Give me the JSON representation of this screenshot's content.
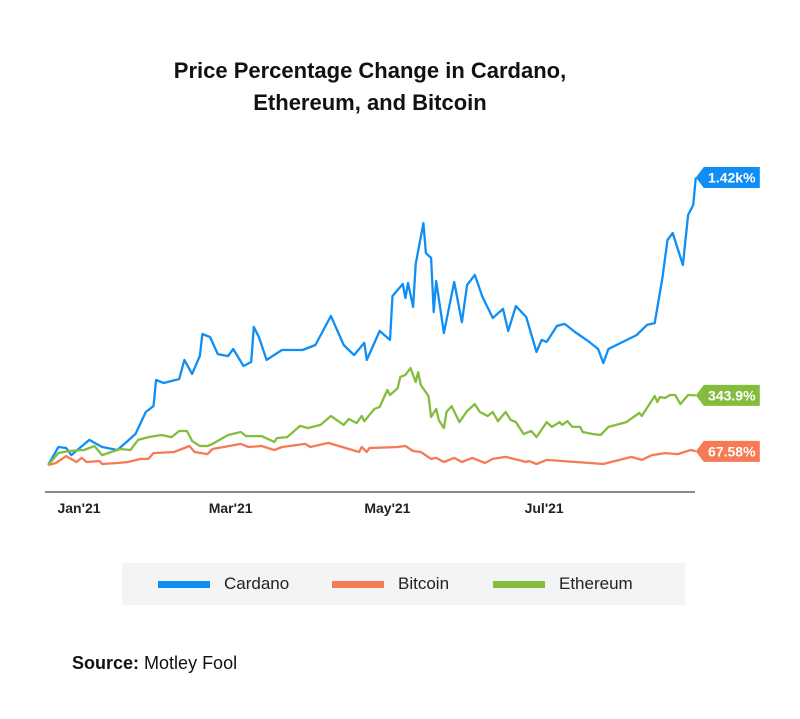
{
  "chart_data": {
    "type": "line",
    "title": "Price Percentage Change in Cardano, Ethereum, and Bitcoin",
    "title_lines": [
      "Price Percentage Change in Cardano,",
      "Ethereum, and Bitcoin"
    ],
    "xlabel": "",
    "ylabel": "",
    "x_ticks": [
      {
        "date": "2021-01-01",
        "label": "Jan'21"
      },
      {
        "date": "2021-03-01",
        "label": "Mar'21"
      },
      {
        "date": "2021-05-01",
        "label": "May'21"
      },
      {
        "date": "2021-07-01",
        "label": "Jul'21"
      }
    ],
    "y_unit": "%",
    "y_axis_shown": false,
    "grid": false,
    "legend_position": "bottom",
    "series": [
      {
        "name": "Cardano",
        "color": "#0f8ff5",
        "end_label": "1.42k%",
        "points": [
          [
            "2020-12-20",
            0
          ],
          [
            "2020-12-24",
            89
          ],
          [
            "2020-12-27",
            84
          ],
          [
            "2020-12-29",
            49
          ],
          [
            "2021-01-05",
            124
          ],
          [
            "2021-01-10",
            89
          ],
          [
            "2021-01-16",
            74
          ],
          [
            "2021-01-23",
            153
          ],
          [
            "2021-01-27",
            262
          ],
          [
            "2021-01-30",
            291
          ],
          [
            "2021-01-31",
            420
          ],
          [
            "2021-02-03",
            405
          ],
          [
            "2021-02-09",
            425
          ],
          [
            "2021-02-11",
            519
          ],
          [
            "2021-02-14",
            450
          ],
          [
            "2021-02-17",
            538
          ],
          [
            "2021-02-18",
            647
          ],
          [
            "2021-02-21",
            632
          ],
          [
            "2021-02-24",
            548
          ],
          [
            "2021-02-28",
            538
          ],
          [
            "2021-03-02",
            573
          ],
          [
            "2021-03-06",
            489
          ],
          [
            "2021-03-09",
            509
          ],
          [
            "2021-03-10",
            682
          ],
          [
            "2021-03-12",
            632
          ],
          [
            "2021-03-15",
            519
          ],
          [
            "2021-03-21",
            568
          ],
          [
            "2021-03-29",
            568
          ],
          [
            "2021-04-03",
            593
          ],
          [
            "2021-04-09",
            736
          ],
          [
            "2021-04-14",
            593
          ],
          [
            "2021-04-18",
            543
          ],
          [
            "2021-04-22",
            603
          ],
          [
            "2021-04-23",
            519
          ],
          [
            "2021-04-28",
            662
          ],
          [
            "2021-05-02",
            618
          ],
          [
            "2021-05-03",
            835
          ],
          [
            "2021-05-07",
            894
          ],
          [
            "2021-05-08",
            825
          ],
          [
            "2021-05-09",
            899
          ],
          [
            "2021-05-11",
            781
          ],
          [
            "2021-05-12",
            993
          ],
          [
            "2021-05-15",
            1195
          ],
          [
            "2021-05-16",
            1047
          ],
          [
            "2021-05-18",
            1023
          ],
          [
            "2021-05-19",
            756
          ],
          [
            "2021-05-20",
            909
          ],
          [
            "2021-05-23",
            652
          ],
          [
            "2021-05-27",
            904
          ],
          [
            "2021-05-30",
            706
          ],
          [
            "2021-06-01",
            889
          ],
          [
            "2021-06-04",
            939
          ],
          [
            "2021-06-07",
            830
          ],
          [
            "2021-06-11",
            726
          ],
          [
            "2021-06-15",
            771
          ],
          [
            "2021-06-17",
            662
          ],
          [
            "2021-06-20",
            785
          ],
          [
            "2021-06-24",
            731
          ],
          [
            "2021-06-28",
            558
          ],
          [
            "2021-06-30",
            618
          ],
          [
            "2021-07-02",
            608
          ],
          [
            "2021-07-06",
            687
          ],
          [
            "2021-07-09",
            697
          ],
          [
            "2021-07-13",
            657
          ],
          [
            "2021-07-18",
            613
          ],
          [
            "2021-07-22",
            573
          ],
          [
            "2021-07-24",
            504
          ],
          [
            "2021-07-26",
            573
          ],
          [
            "2021-08-06",
            642
          ],
          [
            "2021-08-10",
            692
          ],
          [
            "2021-08-13",
            701
          ],
          [
            "2021-08-16",
            924
          ],
          [
            "2021-08-18",
            1112
          ],
          [
            "2021-08-20",
            1146
          ],
          [
            "2021-08-24",
            988
          ],
          [
            "2021-08-26",
            1235
          ],
          [
            "2021-08-28",
            1284
          ],
          [
            "2021-08-29",
            1420
          ]
        ]
      },
      {
        "name": "Bitcoin",
        "color": "#f57a55",
        "end_label": "67.58%",
        "points": [
          [
            "2020-12-20",
            0
          ],
          [
            "2020-12-23",
            10
          ],
          [
            "2020-12-27",
            44
          ],
          [
            "2020-12-31",
            15
          ],
          [
            "2021-01-02",
            35
          ],
          [
            "2021-01-04",
            15
          ],
          [
            "2021-01-09",
            20
          ],
          [
            "2021-01-10",
            5
          ],
          [
            "2021-01-16",
            10
          ],
          [
            "2021-01-20",
            15
          ],
          [
            "2021-01-25",
            30
          ],
          [
            "2021-01-28",
            30
          ],
          [
            "2021-01-30",
            59
          ],
          [
            "2021-02-07",
            64
          ],
          [
            "2021-02-13",
            94
          ],
          [
            "2021-02-15",
            64
          ],
          [
            "2021-02-20",
            54
          ],
          [
            "2021-02-22",
            79
          ],
          [
            "2021-03-05",
            104
          ],
          [
            "2021-03-08",
            89
          ],
          [
            "2021-03-13",
            94
          ],
          [
            "2021-03-18",
            74
          ],
          [
            "2021-03-21",
            89
          ],
          [
            "2021-03-30",
            104
          ],
          [
            "2021-04-01",
            89
          ],
          [
            "2021-04-08",
            109
          ],
          [
            "2021-04-20",
            64
          ],
          [
            "2021-04-21",
            89
          ],
          [
            "2021-04-23",
            64
          ],
          [
            "2021-04-24",
            84
          ],
          [
            "2021-05-05",
            89
          ],
          [
            "2021-05-08",
            94
          ],
          [
            "2021-05-11",
            69
          ],
          [
            "2021-05-14",
            64
          ],
          [
            "2021-05-18",
            30
          ],
          [
            "2021-05-20",
            35
          ],
          [
            "2021-05-23",
            15
          ],
          [
            "2021-05-27",
            35
          ],
          [
            "2021-05-30",
            15
          ],
          [
            "2021-06-03",
            35
          ],
          [
            "2021-06-08",
            10
          ],
          [
            "2021-06-11",
            30
          ],
          [
            "2021-06-16",
            40
          ],
          [
            "2021-06-24",
            15
          ],
          [
            "2021-06-25",
            20
          ],
          [
            "2021-06-28",
            5
          ],
          [
            "2021-07-02",
            25
          ],
          [
            "2021-07-24",
            5
          ],
          [
            "2021-08-04",
            40
          ],
          [
            "2021-08-08",
            25
          ],
          [
            "2021-08-12",
            49
          ],
          [
            "2021-08-17",
            59
          ],
          [
            "2021-08-22",
            54
          ],
          [
            "2021-08-27",
            74
          ],
          [
            "2021-08-29",
            67.58
          ]
        ]
      },
      {
        "name": "Ethereum",
        "color": "#84bd3d",
        "end_label": "343.9%",
        "points": [
          [
            "2020-12-20",
            0
          ],
          [
            "2020-12-24",
            59
          ],
          [
            "2020-12-28",
            69
          ],
          [
            "2021-01-03",
            74
          ],
          [
            "2021-01-07",
            94
          ],
          [
            "2021-01-10",
            49
          ],
          [
            "2021-01-17",
            79
          ],
          [
            "2021-01-21",
            74
          ],
          [
            "2021-01-24",
            124
          ],
          [
            "2021-01-28",
            138
          ],
          [
            "2021-02-02",
            148
          ],
          [
            "2021-02-06",
            138
          ],
          [
            "2021-02-09",
            168
          ],
          [
            "2021-02-12",
            168
          ],
          [
            "2021-02-14",
            119
          ],
          [
            "2021-02-17",
            94
          ],
          [
            "2021-02-20",
            94
          ],
          [
            "2021-02-22",
            104
          ],
          [
            "2021-02-28",
            148
          ],
          [
            "2021-03-05",
            163
          ],
          [
            "2021-03-07",
            143
          ],
          [
            "2021-03-13",
            143
          ],
          [
            "2021-03-18",
            114
          ],
          [
            "2021-03-19",
            133
          ],
          [
            "2021-03-23",
            138
          ],
          [
            "2021-03-28",
            193
          ],
          [
            "2021-03-31",
            183
          ],
          [
            "2021-04-05",
            198
          ],
          [
            "2021-04-09",
            242
          ],
          [
            "2021-04-14",
            198
          ],
          [
            "2021-04-16",
            227
          ],
          [
            "2021-04-19",
            207
          ],
          [
            "2021-04-21",
            242
          ],
          [
            "2021-04-22",
            217
          ],
          [
            "2021-04-26",
            277
          ],
          [
            "2021-04-28",
            287
          ],
          [
            "2021-05-01",
            371
          ],
          [
            "2021-05-02",
            346
          ],
          [
            "2021-05-05",
            380
          ],
          [
            "2021-05-06",
            435
          ],
          [
            "2021-05-08",
            445
          ],
          [
            "2021-05-10",
            479
          ],
          [
            "2021-05-12",
            410
          ],
          [
            "2021-05-13",
            459
          ],
          [
            "2021-05-14",
            395
          ],
          [
            "2021-05-17",
            341
          ],
          [
            "2021-05-18",
            237
          ],
          [
            "2021-05-20",
            277
          ],
          [
            "2021-05-21",
            222
          ],
          [
            "2021-05-23",
            183
          ],
          [
            "2021-05-24",
            262
          ],
          [
            "2021-05-26",
            291
          ],
          [
            "2021-05-29",
            212
          ],
          [
            "2021-06-01",
            267
          ],
          [
            "2021-06-04",
            301
          ],
          [
            "2021-06-06",
            262
          ],
          [
            "2021-06-09",
            242
          ],
          [
            "2021-06-11",
            262
          ],
          [
            "2021-06-13",
            217
          ],
          [
            "2021-06-16",
            262
          ],
          [
            "2021-06-18",
            222
          ],
          [
            "2021-06-20",
            212
          ],
          [
            "2021-06-23",
            153
          ],
          [
            "2021-06-26",
            168
          ],
          [
            "2021-06-28",
            138
          ],
          [
            "2021-07-02",
            212
          ],
          [
            "2021-07-04",
            188
          ],
          [
            "2021-07-07",
            212
          ],
          [
            "2021-07-08",
            198
          ],
          [
            "2021-07-10",
            217
          ],
          [
            "2021-07-12",
            188
          ],
          [
            "2021-07-15",
            188
          ],
          [
            "2021-07-16",
            163
          ],
          [
            "2021-07-20",
            153
          ],
          [
            "2021-07-23",
            148
          ],
          [
            "2021-07-26",
            188
          ],
          [
            "2021-08-02",
            212
          ],
          [
            "2021-08-07",
            257
          ],
          [
            "2021-08-08",
            242
          ],
          [
            "2021-08-13",
            341
          ],
          [
            "2021-08-14",
            311
          ],
          [
            "2021-08-15",
            336
          ],
          [
            "2021-08-17",
            331
          ],
          [
            "2021-08-19",
            346
          ],
          [
            "2021-08-21",
            346
          ],
          [
            "2021-08-23",
            301
          ],
          [
            "2021-08-26",
            346
          ],
          [
            "2021-08-29",
            343.9
          ]
        ]
      }
    ]
  },
  "legend": [
    {
      "label": "Cardano",
      "color": "#0f8ff5"
    },
    {
      "label": "Bitcoin",
      "color": "#f57a55"
    },
    {
      "label": "Ethereum",
      "color": "#84bd3d"
    }
  ],
  "source": {
    "prefix": "Source:",
    "text": "Motley Fool"
  }
}
